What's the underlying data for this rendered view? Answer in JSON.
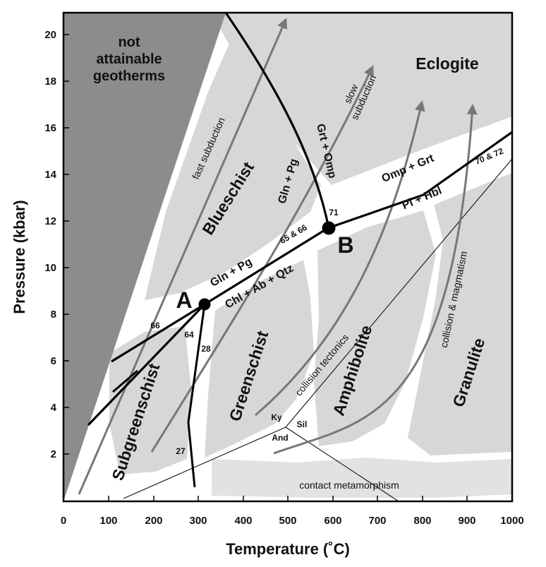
{
  "axes": {
    "x_title": "Temperature (˚C)",
    "y_title": "Pressure (kbar)",
    "x_ticks": [
      "0",
      "100",
      "200",
      "300",
      "400",
      "500",
      "600",
      "700",
      "800",
      "900",
      "1000"
    ],
    "y_ticks": [
      "2",
      "4",
      "6",
      "8",
      "10",
      "12",
      "14",
      "16",
      "18",
      "20"
    ]
  },
  "regions": {
    "not_attainable": [
      "not",
      "attainable",
      "geotherms"
    ],
    "eclogite": "Eclogite",
    "blueschist": "Blueschist",
    "greenschist": "Greenschist",
    "subgreenschist": "Subgreenschist",
    "amphibolite": "Amphibolite",
    "granulite": "Granulite"
  },
  "reactions": {
    "gln_pg_upper": "Gln + Pg",
    "grt_omp": "Grt + Omp",
    "omp_grt": "Omp + Grt",
    "pl_hbl": "Pl + Hbl",
    "gln_pg_lower": "Gln + Pg",
    "chl_ab_qtz": "Chl + Ab + Qtz"
  },
  "numbers": {
    "n66": "66",
    "n64": "64",
    "n28": "28",
    "n27": "27",
    "n65_66": "65 & 66",
    "n71": "71",
    "n70_72": "70 & 72"
  },
  "points": {
    "a": "A",
    "b": "B"
  },
  "aluminosilicates": {
    "ky": "Ky",
    "sil": "Sil",
    "and": "And"
  },
  "paths": {
    "fast_subduction": "fast subduction",
    "slow_subduction": [
      "slow",
      "subduction"
    ],
    "collision_tectonics": "collision tectonics",
    "collision_magmatism": "collision & magmatism",
    "contact_metamorphism": "contact metamorphism"
  }
}
